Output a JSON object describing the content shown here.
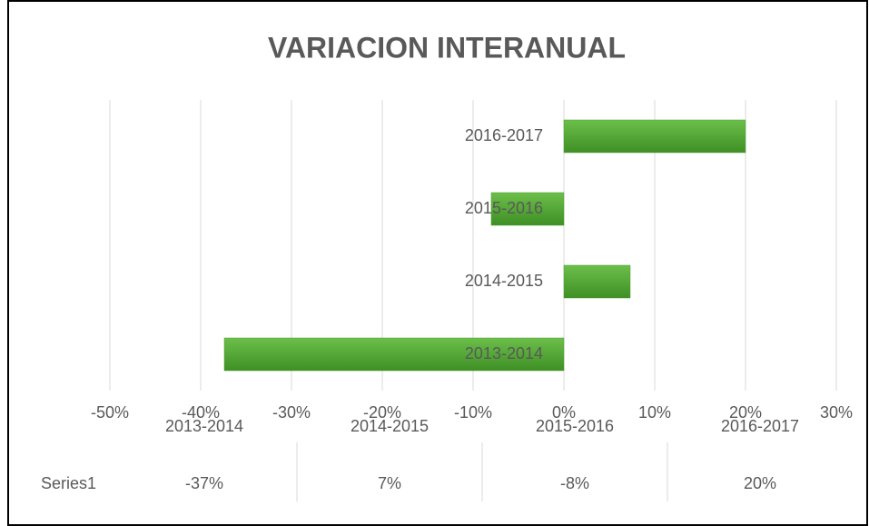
{
  "chart_data": {
    "type": "barh",
    "title": "VARIACION INTERANUAL",
    "categories": [
      "2013-2014",
      "2014-2015",
      "2015-2016",
      "2016-2017"
    ],
    "series": [
      {
        "name": "Series1",
        "color": "#4f9d32",
        "values": [
          -37.4,
          7.3,
          -8,
          20
        ],
        "value_labels": [
          "-37%",
          "7%",
          "-8%",
          "20%"
        ]
      }
    ],
    "xlim": [
      -50,
      30
    ],
    "xticks": [
      {
        "value": -50,
        "label": "-50%"
      },
      {
        "value": -40,
        "label": "-40%"
      },
      {
        "value": -30,
        "label": "-30%"
      },
      {
        "value": -20,
        "label": "-20%"
      },
      {
        "value": -10,
        "label": "-10%"
      },
      {
        "value": 0,
        "label": "0%"
      },
      {
        "value": 10,
        "label": "10%"
      },
      {
        "value": 20,
        "label": "20%"
      },
      {
        "value": 30,
        "label": "30%"
      }
    ],
    "grid": true,
    "data_table": true
  }
}
